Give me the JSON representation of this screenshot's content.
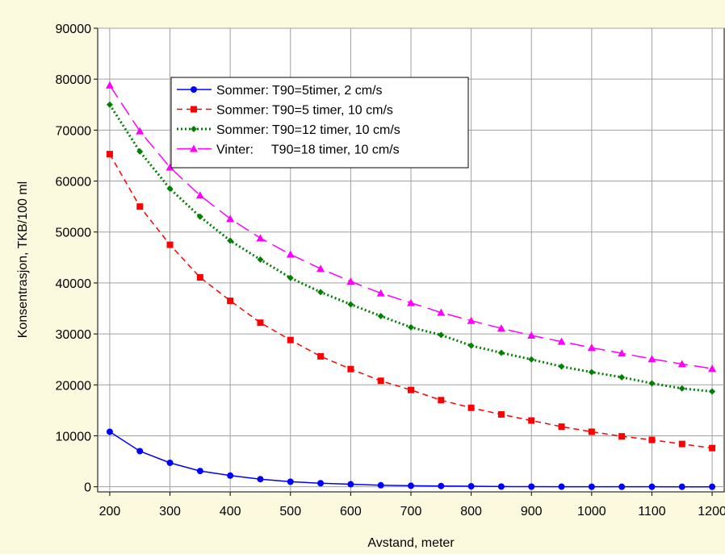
{
  "chart_data": {
    "type": "line",
    "title": "",
    "xlabel": "Avstand, meter",
    "ylabel": "Konsentrasjon, TKB/100 ml",
    "xlim": [
      180,
      1220
    ],
    "ylim": [
      -1000,
      90000
    ],
    "xticks": [
      200,
      300,
      400,
      500,
      600,
      700,
      800,
      900,
      1000,
      1100,
      1200
    ],
    "xtick_labels": [
      "200",
      "300",
      "400",
      "500",
      "600",
      "700",
      "800",
      "900",
      "1000",
      "1100",
      "1200"
    ],
    "yticks": [
      0,
      10000,
      20000,
      30000,
      40000,
      50000,
      60000,
      70000,
      80000,
      90000
    ],
    "ytick_labels": [
      "0",
      "10000",
      "20000",
      "30000",
      "40000",
      "50000",
      "60000",
      "70000",
      "80000",
      "90000"
    ],
    "grid": true,
    "legend_position": "top-left",
    "x": [
      200,
      250,
      300,
      350,
      400,
      450,
      500,
      550,
      600,
      650,
      700,
      750,
      800,
      850,
      900,
      950,
      1000,
      1050,
      1100,
      1150,
      1200
    ],
    "series": [
      {
        "name": "Sommer: T90=5timer, 2 cm/s",
        "color": "#0000ff",
        "marker": "circle",
        "dash": "solid",
        "values": [
          10800,
          7000,
          4700,
          3100,
          2200,
          1500,
          1000,
          700,
          500,
          300,
          200,
          150,
          100,
          50,
          30,
          20,
          10,
          5,
          5,
          0,
          0
        ]
      },
      {
        "name": "Sommer: T90=5 timer, 10 cm/s",
        "color": "#ff0000",
        "marker": "square",
        "dash": "dashed",
        "values": [
          65300,
          55000,
          47500,
          41100,
          36500,
          32200,
          28800,
          25600,
          23100,
          20800,
          19000,
          17000,
          15500,
          14200,
          13000,
          11800,
          10800,
          9900,
          9200,
          8400,
          7600
        ]
      },
      {
        "name": "Sommer: T90=12 timer, 10 cm/s",
        "color": "#008000",
        "marker": "diamond",
        "dash": "dotted",
        "values": [
          75000,
          65800,
          58500,
          53000,
          48300,
          44600,
          41000,
          38200,
          35800,
          33500,
          31300,
          29800,
          27700,
          26300,
          25000,
          23600,
          22500,
          21500,
          20300,
          19300,
          18700
        ]
      },
      {
        "name": "Vinter:     T90=18 timer, 10 cm/s",
        "color": "#ff00ff",
        "marker": "triangle",
        "dash": "longdash",
        "values": [
          78800,
          69800,
          62700,
          57200,
          52600,
          48800,
          45600,
          42800,
          40300,
          38000,
          36100,
          34200,
          32600,
          31100,
          29700,
          28500,
          27300,
          26200,
          25100,
          24100,
          23200
        ]
      }
    ]
  }
}
